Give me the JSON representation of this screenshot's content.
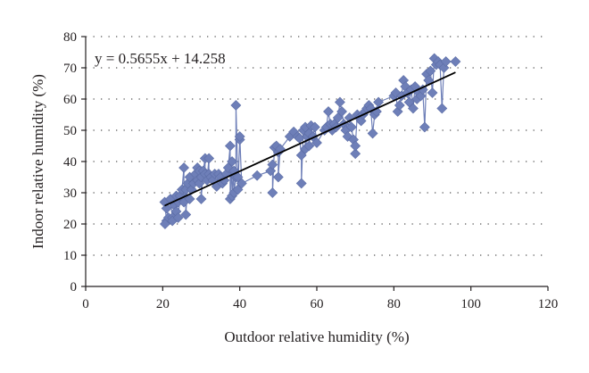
{
  "chart_data": {
    "type": "scatter",
    "title": "",
    "xlabel": "Outdoor relative humidity (%)",
    "ylabel": "Indoor relative humidity (%)",
    "xlim": [
      0,
      120
    ],
    "ylim": [
      0,
      80
    ],
    "xticks": [
      0,
      20,
      40,
      60,
      80,
      100,
      120
    ],
    "yticks": [
      0,
      10,
      20,
      30,
      40,
      50,
      60,
      70,
      80
    ],
    "grid": "horizontal-dotted",
    "legend": "none",
    "annotation": {
      "text": "y = 0.5655x + 14.258"
    },
    "trendline": {
      "slope": 0.5655,
      "intercept": 14.258,
      "x_range": [
        20.5,
        96
      ]
    },
    "colors": {
      "series": "#6e7fb8",
      "trendline": "#000000",
      "axis": "#231f20"
    },
    "series": [
      {
        "points": [
          [
            20.5,
            27
          ],
          [
            21,
            21
          ],
          [
            20.6,
            20
          ],
          [
            21.5,
            22
          ],
          [
            21,
            25
          ],
          [
            22,
            28
          ],
          [
            22.5,
            22
          ],
          [
            23,
            26
          ],
          [
            22.5,
            21
          ],
          [
            23.5,
            29
          ],
          [
            24,
            27
          ],
          [
            23.5,
            24
          ],
          [
            24,
            22
          ],
          [
            24.5,
            29
          ],
          [
            25,
            31
          ],
          [
            25.5,
            38
          ],
          [
            25.5,
            27
          ],
          [
            26,
            31
          ],
          [
            26,
            23
          ],
          [
            26.5,
            33
          ],
          [
            27,
            35
          ],
          [
            27,
            28
          ],
          [
            27.5,
            31
          ],
          [
            28,
            33
          ],
          [
            28.5,
            36
          ],
          [
            29,
            34
          ],
          [
            29,
            38
          ],
          [
            29.5,
            33
          ],
          [
            29.5,
            37
          ],
          [
            30,
            35
          ],
          [
            30,
            28
          ],
          [
            30.5,
            37
          ],
          [
            31,
            41
          ],
          [
            31,
            36
          ],
          [
            31.5,
            34
          ],
          [
            32,
            41
          ],
          [
            32,
            36
          ],
          [
            32.5,
            35
          ],
          [
            33,
            34
          ],
          [
            33.5,
            36
          ],
          [
            34,
            32
          ],
          [
            34.5,
            36
          ],
          [
            35,
            35
          ],
          [
            35.5,
            33
          ],
          [
            36,
            34
          ],
          [
            36.5,
            36
          ],
          [
            37,
            38
          ],
          [
            37.5,
            45
          ],
          [
            37.5,
            28
          ],
          [
            38,
            40
          ],
          [
            38,
            29
          ],
          [
            38.5,
            37
          ],
          [
            38.5,
            30
          ],
          [
            39,
            35
          ],
          [
            39,
            58
          ],
          [
            39.5,
            35
          ],
          [
            39.5,
            31
          ],
          [
            40,
            47
          ],
          [
            40,
            48
          ],
          [
            40.5,
            33
          ],
          [
            44.5,
            35.5
          ],
          [
            48,
            37
          ],
          [
            48.5,
            39
          ],
          [
            48.5,
            30
          ],
          [
            49,
            44.5
          ],
          [
            49.5,
            45
          ],
          [
            50,
            43
          ],
          [
            50,
            35
          ],
          [
            50.5,
            44
          ],
          [
            53,
            48
          ],
          [
            54,
            49.5
          ],
          [
            55,
            48
          ],
          [
            55.5,
            47.5
          ],
          [
            56,
            42
          ],
          [
            56,
            33
          ],
          [
            56.5,
            50
          ],
          [
            57,
            51
          ],
          [
            57,
            44
          ],
          [
            57.5,
            48
          ],
          [
            58,
            49
          ],
          [
            58,
            45
          ],
          [
            58.5,
            51.5
          ],
          [
            59,
            48
          ],
          [
            59.5,
            51
          ],
          [
            60,
            46
          ],
          [
            62,
            50
          ],
          [
            62.5,
            51
          ],
          [
            63,
            56
          ],
          [
            63.5,
            52
          ],
          [
            64,
            50
          ],
          [
            64.5,
            52
          ],
          [
            65,
            51
          ],
          [
            65.5,
            54
          ],
          [
            66,
            59
          ],
          [
            66.5,
            56
          ],
          [
            67,
            52
          ],
          [
            67.5,
            50
          ],
          [
            68,
            48
          ],
          [
            68.5,
            54
          ],
          [
            69,
            51
          ],
          [
            69.5,
            47
          ],
          [
            70,
            42.5
          ],
          [
            70,
            45
          ],
          [
            70.5,
            55
          ],
          [
            71,
            54
          ],
          [
            71.5,
            53
          ],
          [
            72,
            55
          ],
          [
            72.5,
            56
          ],
          [
            73,
            57
          ],
          [
            73.5,
            58
          ],
          [
            74,
            57
          ],
          [
            74.5,
            49
          ],
          [
            75,
            55
          ],
          [
            75.5,
            56
          ],
          [
            76,
            59
          ],
          [
            80,
            61
          ],
          [
            80.5,
            62
          ],
          [
            81,
            56
          ],
          [
            81.5,
            58
          ],
          [
            82,
            61
          ],
          [
            82.5,
            66
          ],
          [
            83,
            64
          ],
          [
            83.5,
            62
          ],
          [
            84,
            59
          ],
          [
            84.5,
            63
          ],
          [
            85,
            57
          ],
          [
            85.5,
            64
          ],
          [
            86,
            60
          ],
          [
            86.5,
            62
          ],
          [
            87,
            61
          ],
          [
            87.5,
            63
          ],
          [
            88,
            51
          ],
          [
            88.5,
            68
          ],
          [
            89,
            66
          ],
          [
            89.5,
            69
          ],
          [
            90,
            62
          ],
          [
            90.5,
            73
          ],
          [
            91,
            71
          ],
          [
            91.5,
            72
          ],
          [
            92,
            71
          ],
          [
            92.5,
            57
          ],
          [
            93,
            70
          ],
          [
            93.5,
            72
          ],
          [
            96,
            72
          ]
        ]
      }
    ]
  }
}
